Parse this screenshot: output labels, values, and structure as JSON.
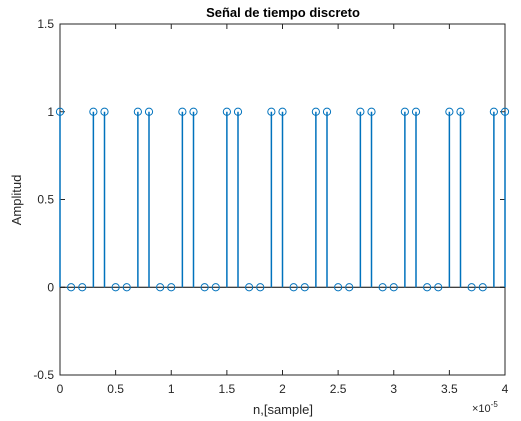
{
  "chart_data": {
    "type": "stem",
    "title": "Señal de tiempo discreto",
    "xlabel": "n,[sample]",
    "ylabel": "Amplitud",
    "x_exponent_label": "×10",
    "x_exponent_power": "-5",
    "x_multiplier": 1e-05,
    "xlim": [
      0,
      4
    ],
    "ylim": [
      -0.5,
      1.5
    ],
    "x_ticks": [
      0,
      0.5,
      1,
      1.5,
      2,
      2.5,
      3,
      3.5,
      4
    ],
    "x_tick_labels": [
      "0",
      "0.5",
      "1",
      "1.5",
      "2",
      "2.5",
      "3",
      "3.5",
      "4"
    ],
    "y_ticks": [
      -0.5,
      0,
      0.5,
      1,
      1.5
    ],
    "y_tick_labels": [
      "-0.5",
      "0",
      "0.5",
      "1",
      "1.5"
    ],
    "grid": false,
    "color": "#0072BD",
    "x": [
      0,
      0.1,
      0.2,
      0.3,
      0.4,
      0.5,
      0.6,
      0.7,
      0.8,
      0.9,
      1.0,
      1.1,
      1.2,
      1.3,
      1.4,
      1.5,
      1.6,
      1.7,
      1.8,
      1.9,
      2.0,
      2.1,
      2.2,
      2.3,
      2.4,
      2.5,
      2.6,
      2.7,
      2.8,
      2.9,
      3.0,
      3.1,
      3.2,
      3.3,
      3.4,
      3.5,
      3.6,
      3.7,
      3.8,
      3.9,
      4.0
    ],
    "y": [
      1,
      0,
      0,
      1,
      1,
      0,
      0,
      1,
      1,
      0,
      0,
      1,
      1,
      0,
      0,
      1,
      1,
      0,
      0,
      1,
      1,
      0,
      0,
      1,
      1,
      0,
      0,
      1,
      1,
      0,
      0,
      1,
      1,
      0,
      0,
      1,
      1,
      0,
      0,
      1,
      1
    ]
  }
}
